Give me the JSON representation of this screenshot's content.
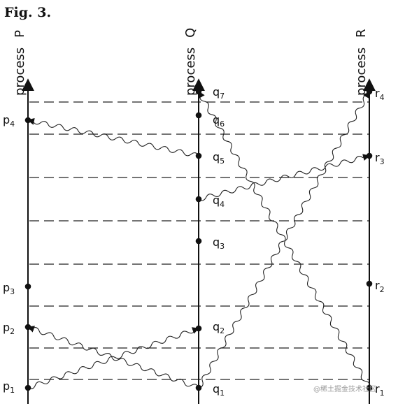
{
  "figure": {
    "title": "Fig. 3."
  },
  "processes": [
    {
      "id": "P",
      "letter": "P",
      "label": "process"
    },
    {
      "id": "Q",
      "letter": "Q",
      "label": "process"
    },
    {
      "id": "R",
      "letter": "R",
      "label": "process"
    }
  ],
  "events": [
    {
      "id": "p1",
      "proc": "P",
      "letter": "p",
      "sub": "1"
    },
    {
      "id": "p2",
      "proc": "P",
      "letter": "p",
      "sub": "2"
    },
    {
      "id": "p3",
      "proc": "P",
      "letter": "p",
      "sub": "3"
    },
    {
      "id": "p4",
      "proc": "P",
      "letter": "p",
      "sub": "4"
    },
    {
      "id": "q1",
      "proc": "Q",
      "letter": "q",
      "sub": "1"
    },
    {
      "id": "q2",
      "proc": "Q",
      "letter": "q",
      "sub": "2"
    },
    {
      "id": "q3",
      "proc": "Q",
      "letter": "q",
      "sub": "3"
    },
    {
      "id": "q4",
      "proc": "Q",
      "letter": "q",
      "sub": "4"
    },
    {
      "id": "q5",
      "proc": "Q",
      "letter": "q",
      "sub": "5"
    },
    {
      "id": "q6",
      "proc": "Q",
      "letter": "q",
      "sub": "6"
    },
    {
      "id": "q7",
      "proc": "Q",
      "letter": "q",
      "sub": "7"
    },
    {
      "id": "r1",
      "proc": "R",
      "letter": "r",
      "sub": "1"
    },
    {
      "id": "r2",
      "proc": "R",
      "letter": "r",
      "sub": "2"
    },
    {
      "id": "r3",
      "proc": "R",
      "letter": "r",
      "sub": "3"
    },
    {
      "id": "r4",
      "proc": "R",
      "letter": "r",
      "sub": "4"
    }
  ],
  "messages": [
    {
      "from": "p1",
      "to": "q2"
    },
    {
      "from": "q1",
      "to": "p2"
    },
    {
      "from": "q1",
      "to": "r4"
    },
    {
      "from": "q4",
      "to": "r3"
    },
    {
      "from": "q5",
      "to": "p4"
    },
    {
      "from": "r1",
      "to": "q7"
    }
  ],
  "watermark": {
    "text": "@稀土掘金技术社区"
  }
}
